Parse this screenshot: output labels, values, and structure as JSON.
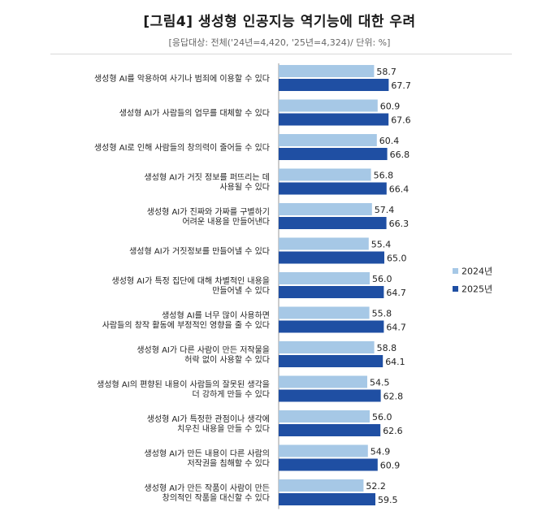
{
  "chart_data": {
    "type": "bar",
    "orientation": "horizontal",
    "title": "[그림4] 생성형 인공지능 역기능에 대한 우려",
    "subtitle": "[응답대상: 전체('24년=4,420, '25년=4,324)/ 단위: %]",
    "xlim": [
      0,
      100
    ],
    "grid": false,
    "legend_position": "right",
    "categories": [
      [
        "생성형 AI를 악용하여 사기나 범죄에 이용할 수 있다"
      ],
      [
        "생성형 AI가 사람들의 업무를 대체할 수 있다"
      ],
      [
        "생성형 AI로 인해 사람들의 창의력이 줄어들 수 있다"
      ],
      [
        "생성형 AI가 거짓 정보를 퍼뜨리는 데",
        "사용될 수 있다"
      ],
      [
        "생성형 AI가 진짜와 가짜를 구별하기",
        "어려운 내용을 만들어낸다"
      ],
      [
        "생성형 AI가 거짓정보를 만들어낼 수 있다"
      ],
      [
        "생성형 AI가 특정 집단에 대해 차별적인 내용을",
        "만들어낼 수 있다"
      ],
      [
        "생성형 AI를 너무 많이 사용하면",
        "사람들의 창작 활동에 부정적인 영향을 줄 수 있다"
      ],
      [
        "생성형 AI가 다른 사람이 만든 저작물을",
        "허락 없이 사용할 수 있다"
      ],
      [
        "생성형 AI의 편향된 내용이 사람들의 잘못된 생각을",
        "더 강하게 만들 수 있다"
      ],
      [
        "생성형 AI가 특정한 관점이나 생각에",
        "치우친 내용을 만들 수 있다"
      ],
      [
        "생성형 AI가 만든 내용이 다른 사람의",
        "저작권을 침해할 수 있다"
      ],
      [
        "생성형 AI가 만든 작품이 사람이 만든",
        "창의적인 작품을 대신할 수 있다"
      ]
    ],
    "series": [
      {
        "name": "2024년",
        "color": "#a6c8e6",
        "values": [
          58.7,
          60.9,
          60.4,
          56.8,
          57.4,
          55.4,
          56.0,
          55.8,
          58.8,
          54.5,
          56.0,
          54.9,
          52.2
        ]
      },
      {
        "name": "2025년",
        "color": "#1f4fa3",
        "values": [
          67.7,
          67.6,
          66.8,
          66.4,
          66.3,
          65.0,
          64.7,
          64.7,
          64.1,
          62.8,
          62.6,
          60.9,
          59.5
        ]
      }
    ]
  }
}
